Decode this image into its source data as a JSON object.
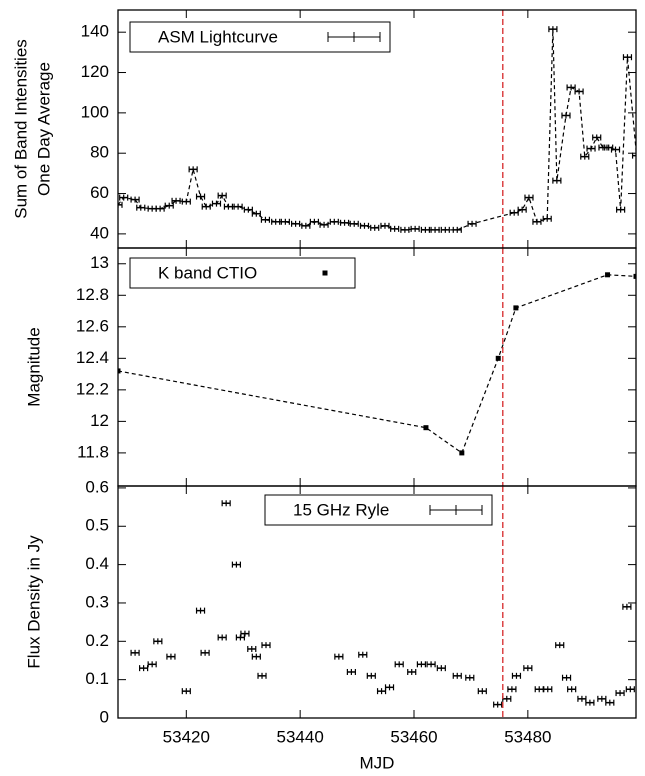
{
  "chart_data": [
    {
      "type": "line",
      "legend": "top-left",
      "marker": "errorbar",
      "line_style": "dashed",
      "ylabel": [
        "Sum of Band Intensities",
        "One Day Average"
      ],
      "xlim": [
        53408,
        53499
      ],
      "ylim": [
        33,
        151
      ],
      "yticks": [
        40,
        60,
        80,
        100,
        120,
        140
      ],
      "vline": {
        "x": 53475.6,
        "color": "#d62728"
      },
      "x": [
        53408.0,
        53409,
        53411,
        53412,
        53414,
        53415.4,
        53417,
        53418.2,
        53420,
        53421.2,
        53422.5,
        53423.5,
        53425.3,
        53426.3,
        53427.4,
        53429.1,
        53430.9,
        53432.3,
        53433.9,
        53435.7,
        53437.4,
        53439.2,
        53441,
        53442.5,
        53444.2,
        53446,
        53447.8,
        53449.5,
        53451.3,
        53453.1,
        53454.9,
        53456.6,
        53458.4,
        53460.2,
        53462,
        53463.7,
        53465.5,
        53467.6,
        53470.2,
        53477.6,
        53479,
        53480.2,
        53481.6,
        53483.4,
        53484.4,
        53485.1,
        53486.7,
        53487.6,
        53489,
        53490,
        53491.1,
        53492.1,
        53493.2,
        53494.2,
        53495.4,
        53496.3,
        53497.5,
        53499.1
      ],
      "series": [
        {
          "name": "ASM Lightcurve",
          "color": "#000000",
          "values": [
            54.4,
            58,
            57,
            53,
            52.5,
            52.5,
            54,
            56.4,
            56,
            72,
            58.5,
            53.5,
            55,
            59,
            53.5,
            53.5,
            52,
            50,
            47,
            46,
            46,
            45,
            44,
            46,
            44.5,
            46,
            45.5,
            45,
            44,
            43,
            44,
            42.5,
            42,
            42.5,
            42,
            42,
            42,
            42,
            45,
            50.5,
            52,
            58,
            46,
            47.5,
            141.5,
            66.4,
            98.7,
            112.6,
            110.6,
            78.3,
            82.3,
            87.8,
            82.8,
            82.8,
            81.8,
            52,
            127.6,
            78.8
          ]
        }
      ]
    },
    {
      "type": "line",
      "legend": "top-left",
      "marker": "square",
      "line_style": "dashed",
      "ylabel": [
        "Magnitude"
      ],
      "xlim": [
        53408,
        53499
      ],
      "ylim": [
        11.59,
        13.1
      ],
      "yticks": [
        11.8,
        12,
        12.2,
        12.4,
        12.6,
        12.8,
        13
      ],
      "vline": {
        "x": 53475.6,
        "color": "#d62728"
      },
      "x": [
        53408,
        53462.1,
        53468.4,
        53474.8,
        53477.9,
        53494.0,
        53499
      ],
      "series": [
        {
          "name": "K band CTIO",
          "color": "#000000",
          "values": [
            12.32,
            11.96,
            11.8,
            12.4,
            12.72,
            12.93,
            12.92
          ]
        }
      ]
    },
    {
      "type": "scatter",
      "legend": "top-center",
      "marker": "errorbar",
      "ylabel": [
        "Flux Density in Jy"
      ],
      "xlabel": "MJD",
      "xlim": [
        53408,
        53499
      ],
      "xticks": [
        53420,
        53440,
        53460,
        53480
      ],
      "ylim": [
        0,
        0.605
      ],
      "yticks": [
        0,
        0.1,
        0.2,
        0.3,
        0.4,
        0.5,
        0.6
      ],
      "vline": {
        "x": 53475.6,
        "color": "#d62728"
      },
      "x": [
        53411,
        53412.5,
        53414,
        53415,
        53417.3,
        53420,
        53422.5,
        53423.3,
        53426.3,
        53427,
        53428.8,
        53429.5,
        53430.3,
        53431.5,
        53432.3,
        53433.3,
        53434,
        53446.8,
        53449,
        53451,
        53452.5,
        53454.3,
        53455.7,
        53457.4,
        53459.6,
        53461.3,
        53463,
        53464.8,
        53467.6,
        53469.8,
        53472,
        53474.7,
        53476.3,
        53477.2,
        53478,
        53480,
        53482,
        53483.5,
        53485.6,
        53486.8,
        53487.7,
        53489.5,
        53490.9,
        53493,
        53494.4,
        53496.2,
        53497.4,
        53498
      ],
      "series": [
        {
          "name": "15 GHz Ryle",
          "color": "#000000",
          "values": [
            0.17,
            0.13,
            0.14,
            0.2,
            0.16,
            0.07,
            0.28,
            0.17,
            0.21,
            0.56,
            0.4,
            0.21,
            0.22,
            0.18,
            0.16,
            0.11,
            0.19,
            0.16,
            0.12,
            0.165,
            0.11,
            0.07,
            0.08,
            0.14,
            0.12,
            0.14,
            0.14,
            0.13,
            0.11,
            0.105,
            0.07,
            0.035,
            0.05,
            0.075,
            0.11,
            0.13,
            0.075,
            0.075,
            0.19,
            0.105,
            0.075,
            0.05,
            0.04,
            0.05,
            0.04,
            0.065,
            0.29,
            0.075
          ]
        }
      ]
    }
  ]
}
